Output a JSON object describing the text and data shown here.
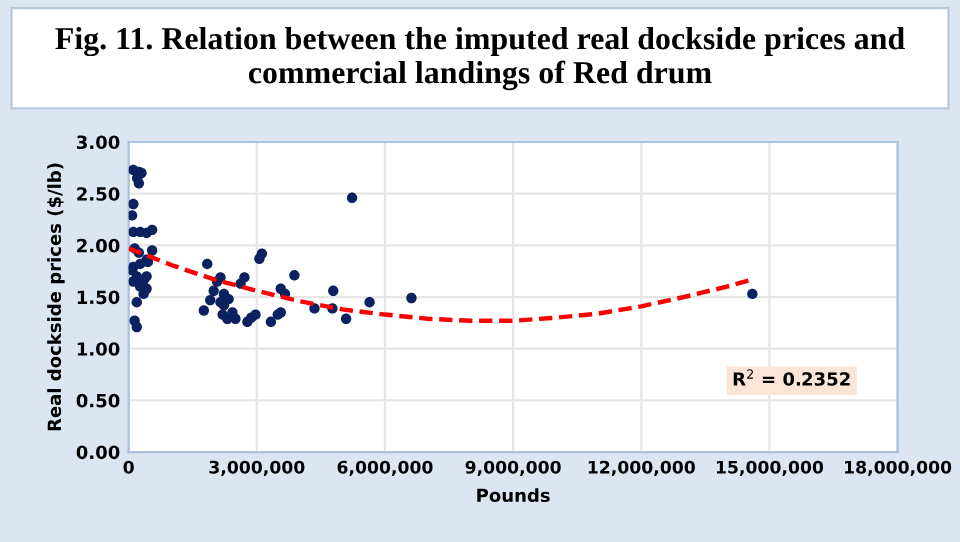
{
  "chart_data": {
    "type": "scatter",
    "title": "Fig. 11. Relation between the imputed real dockside prices and commercial landings of Red drum",
    "xlabel": "Pounds",
    "ylabel": "Real dockside prices ($/lb)",
    "series": [
      {
        "color": "#0b2160",
        "marker": "circle",
        "x": [
          110000,
          240000,
          300000,
          200000,
          240000,
          110000,
          80000,
          110000,
          270000,
          420000,
          550000,
          140000,
          240000,
          110000,
          270000,
          420000,
          80000,
          190000,
          350000,
          110000,
          270000,
          350000,
          420000,
          450000,
          190000,
          140000,
          190000,
          550000,
          420000,
          1840000,
          1760000,
          1910000,
          1990000,
          2070000,
          2150000,
          2230000,
          2150000,
          2230000,
          2340000,
          2200000,
          2310000,
          2430000,
          2500000,
          2620000,
          2710000,
          2780000,
          2870000,
          2970000,
          3120000,
          3060000,
          3330000,
          3490000,
          3560000,
          3660000,
          3560000,
          3880000,
          4350000,
          4770000,
          4790000,
          5090000,
          5230000,
          5640000,
          6620000,
          14600000
        ],
        "values": [
          2.73,
          2.71,
          2.7,
          2.65,
          2.6,
          2.4,
          2.29,
          2.13,
          2.13,
          2.12,
          2.15,
          1.97,
          1.93,
          1.79,
          1.82,
          1.86,
          1.76,
          1.7,
          1.66,
          1.65,
          1.6,
          1.53,
          1.7,
          1.84,
          1.45,
          1.27,
          1.21,
          1.95,
          1.58,
          1.82,
          1.37,
          1.47,
          1.56,
          1.65,
          1.69,
          1.53,
          1.45,
          1.42,
          1.48,
          1.33,
          1.29,
          1.35,
          1.29,
          1.63,
          1.69,
          1.26,
          1.3,
          1.33,
          1.92,
          1.87,
          1.26,
          1.33,
          1.35,
          1.53,
          1.58,
          1.71,
          1.39,
          1.39,
          1.56,
          1.29,
          2.46,
          1.45,
          1.49,
          1.53
        ]
      },
      {
        "type": "line",
        "color": "#ff0000",
        "line_style": "dashed",
        "marker": "none",
        "x": [
          0,
          1000000,
          2000000,
          3000000,
          4000000,
          5000000,
          6000000,
          7000000,
          8000000,
          9000000,
          10000000,
          11000000,
          12000000,
          13000000,
          14000000,
          14600000
        ],
        "values": [
          1.97,
          1.81,
          1.67,
          1.56,
          1.46,
          1.38,
          1.33,
          1.29,
          1.27,
          1.27,
          1.3,
          1.34,
          1.41,
          1.5,
          1.6,
          1.67
        ]
      }
    ],
    "xlim": [
      0,
      18000000
    ],
    "xticks": [
      {
        "value": 0,
        "label": "0"
      },
      {
        "value": 3000000,
        "label": "3,000,000"
      },
      {
        "value": 6000000,
        "label": "6,000,000"
      },
      {
        "value": 9000000,
        "label": "9,000,000"
      },
      {
        "value": 12000000,
        "label": "12,000,000"
      },
      {
        "value": 15000000,
        "label": "15,000,000"
      },
      {
        "value": 18000000,
        "label": "18,000,000"
      }
    ],
    "ylim": [
      0,
      3
    ],
    "yticks": [
      {
        "value": 0,
        "label": "0.00"
      },
      {
        "value": 0.5,
        "label": "0.50"
      },
      {
        "value": 1,
        "label": "1.00"
      },
      {
        "value": 1.5,
        "label": "1.50"
      },
      {
        "value": 2,
        "label": "2.00"
      },
      {
        "value": 2.5,
        "label": "2.50"
      },
      {
        "value": 3,
        "label": "3.00"
      }
    ],
    "grid": true,
    "legend": false,
    "annotations": [
      "R$^{2}$ = 0.2352"
    ]
  }
}
